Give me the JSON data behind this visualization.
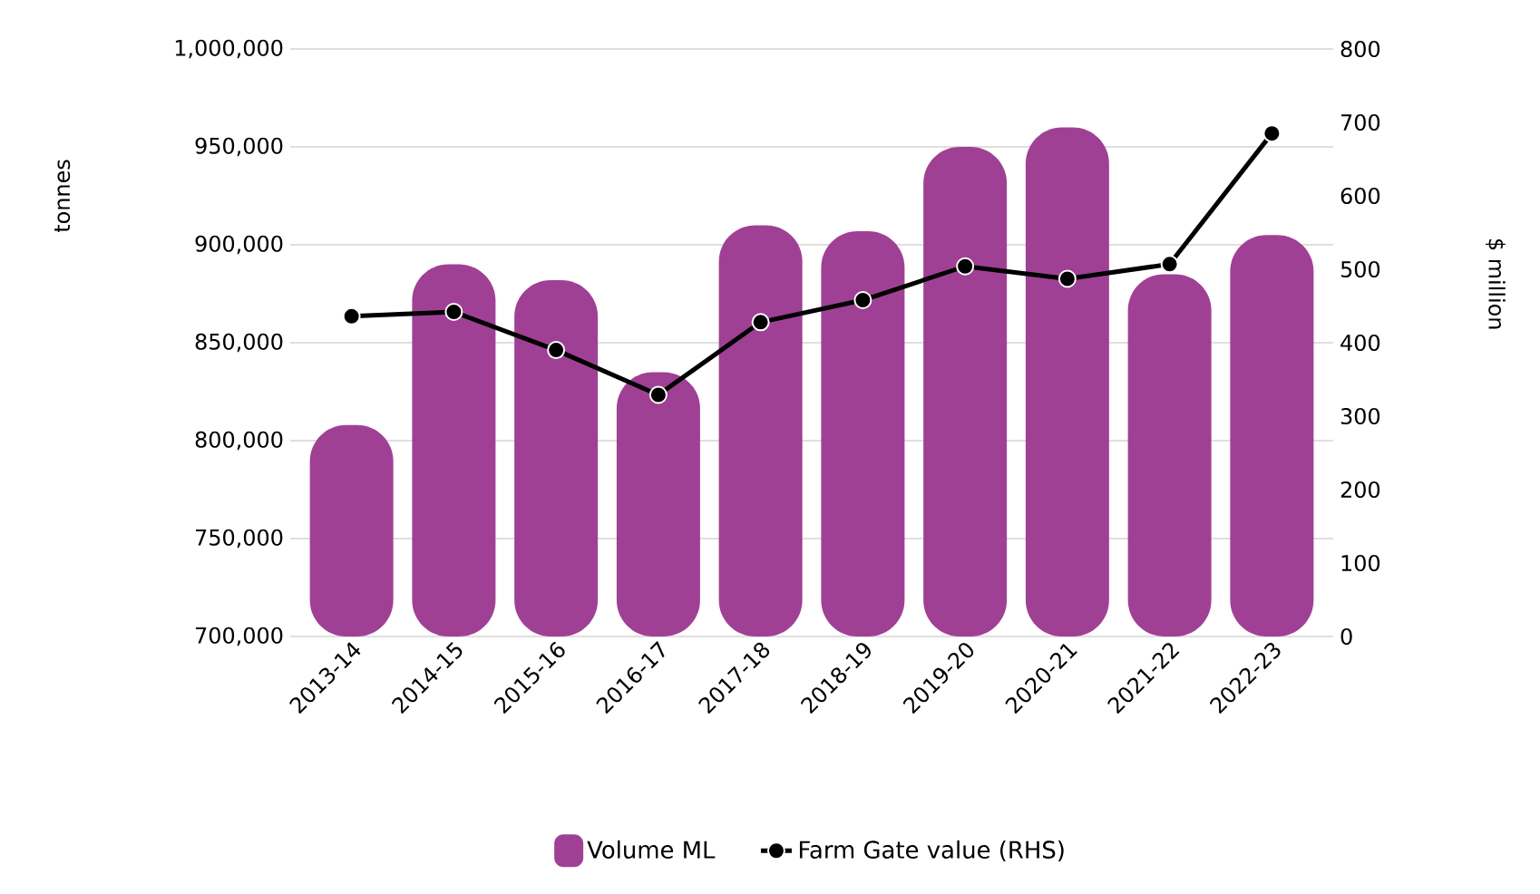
{
  "chart_data": {
    "type": "bar",
    "ylabel": "tonnes",
    "y2label": "$ million",
    "categories": [
      "2013-14",
      "2014-15",
      "2015-16",
      "2016-17",
      "2017-18",
      "2018-19",
      "2019-20",
      "2020-21",
      "2021-22",
      "2022-23"
    ],
    "series": [
      {
        "name": "Volume ML",
        "color": "#a04095",
        "values": [
          808000,
          890000,
          882000,
          835000,
          910000,
          907000,
          950000,
          960000,
          885000,
          905000
        ]
      },
      {
        "name": "Farm Gate value (RHS)",
        "type": "line",
        "axis": "y2",
        "color": "#000000",
        "marker": "circle",
        "values": [
          436,
          442,
          390,
          329,
          428,
          458,
          504,
          487,
          507,
          685
        ]
      }
    ],
    "ylim": [
      700000,
      1000000
    ],
    "yticks": [
      {
        "value": 700000,
        "label": "700,000"
      },
      {
        "value": 750000,
        "label": "750,000"
      },
      {
        "value": 800000,
        "label": "800,000"
      },
      {
        "value": 850000,
        "label": "850,000"
      },
      {
        "value": 900000,
        "label": "900,000"
      },
      {
        "value": 950000,
        "label": "950,000"
      },
      {
        "value": 1000000,
        "label": "1,000,000"
      }
    ],
    "y2lim": [
      0,
      800
    ],
    "y2ticks": [
      0,
      100,
      200,
      300,
      400,
      500,
      600,
      700,
      800
    ],
    "grid": "y",
    "legend": "bottom"
  }
}
